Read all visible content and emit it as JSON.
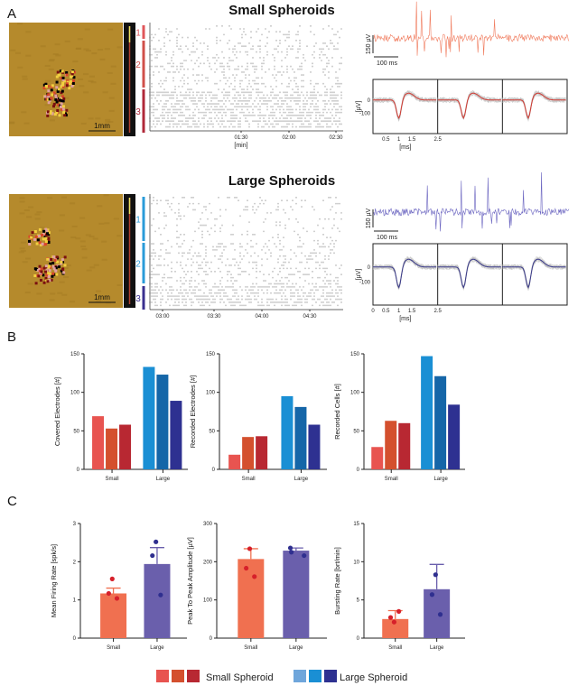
{
  "panel_labels": {
    "a": "A",
    "b": "B",
    "c": "C"
  },
  "panel_a": {
    "small": {
      "title": "Small Spheroids",
      "scale_label": "1mm",
      "cluster_labels": [
        "1",
        "2",
        "3"
      ],
      "cluster_colors": [
        "#e0565a",
        "#d0504a",
        "#b02838"
      ],
      "raster_ticks": [
        "01:30",
        "02:00",
        "02:30"
      ],
      "raster_xlabel": "[min]",
      "trace_color": "#f07a5c",
      "trace_scale_v": "150 µV",
      "trace_scale_t": "100 ms",
      "waveform_ylabel": "[µV]",
      "waveform_yticks": [
        "0",
        "-100"
      ],
      "waveform_xticks": [
        "0.5",
        "1",
        "1.5",
        "2.5"
      ],
      "waveform_xlabel": "[ms]",
      "waveform_color": "#d23a32"
    },
    "large": {
      "title": "Large Spheroids",
      "scale_label": "1mm",
      "cluster_labels": [
        "1",
        "2",
        "3"
      ],
      "cluster_colors": [
        "#2a9bd8",
        "#2a9bd8",
        "#3a2f8f"
      ],
      "raster_ticks": [
        "03:00",
        "03:30",
        "04:00",
        "04:30"
      ],
      "raster_xlabel": "",
      "trace_color": "#6a64c0",
      "trace_scale_v": "150 µV",
      "trace_scale_t": "100 ms",
      "waveform_ylabel": "[µV]",
      "waveform_yticks": [
        "0",
        "-100"
      ],
      "waveform_xticks": [
        "0",
        "0.5",
        "1",
        "1.5",
        "2.5"
      ],
      "waveform_xlabel": "[ms]",
      "waveform_color": "#3a3a8a"
    }
  },
  "chart_data": [
    {
      "type": "bar",
      "panel": "B",
      "ylabel": "Covered Electrodes [#]",
      "ylim": [
        0,
        150
      ],
      "yticks": [
        "0",
        "50",
        "100",
        "150"
      ],
      "categories": [
        "Small",
        "Large"
      ],
      "values": [
        [
          69,
          53,
          58
        ],
        [
          133,
          123,
          89
        ]
      ]
    },
    {
      "type": "bar",
      "panel": "B",
      "ylabel": "Recorded Electrodes [#]",
      "ylim": [
        0,
        150
      ],
      "yticks": [
        "0",
        "50",
        "100",
        "150"
      ],
      "categories": [
        "Small",
        "Large"
      ],
      "values": [
        [
          19,
          42,
          43
        ],
        [
          95,
          81,
          58
        ]
      ]
    },
    {
      "type": "bar",
      "panel": "B",
      "ylabel": "Recorded Cells [#]",
      "ylim": [
        0,
        150
      ],
      "yticks": [
        "0",
        "50",
        "100",
        "150"
      ],
      "categories": [
        "Small",
        "Large"
      ],
      "values": [
        [
          29,
          63,
          60
        ],
        [
          147,
          121,
          84
        ]
      ]
    },
    {
      "type": "bar",
      "panel": "C",
      "ylabel": "Mean Firing Rate [spk/s]",
      "ylim": [
        0,
        3
      ],
      "yticks": [
        "0",
        "1",
        "2",
        "3"
      ],
      "categories": [
        "Small",
        "Large"
      ],
      "means": [
        1.17,
        1.94
      ],
      "error_upper": [
        1.31,
        2.37
      ],
      "points": [
        [
          1.55,
          1.17,
          1.04
        ],
        [
          2.52,
          2.16,
          1.13
        ]
      ]
    },
    {
      "type": "bar",
      "panel": "C",
      "ylabel": "Peak To Peak Amplitude [µV]",
      "ylim": [
        0,
        300
      ],
      "yticks": [
        "0",
        "100",
        "200",
        "300"
      ],
      "categories": [
        "Small",
        "Large"
      ],
      "means": [
        207,
        229
      ],
      "error_upper": [
        234,
        236
      ],
      "points": [
        [
          234,
          183,
          161
        ],
        [
          236,
          225,
          216
        ]
      ]
    },
    {
      "type": "bar",
      "panel": "C",
      "ylabel": "Bursting Rate [brt/min]",
      "ylim": [
        0,
        15
      ],
      "yticks": [
        "0",
        "5",
        "10",
        "15"
      ],
      "categories": [
        "Small",
        "Large"
      ],
      "means": [
        2.5,
        6.4
      ],
      "error_upper": [
        3.6,
        9.65
      ],
      "points": [
        [
          2.1,
          2.7,
          3.5
        ],
        [
          8.3,
          5.7,
          3.1
        ]
      ]
    }
  ],
  "colors": {
    "small_bars": [
      "#e85450",
      "#d4502e",
      "#b82832"
    ],
    "large_bars": [
      "#1a8fd4",
      "#1566a8",
      "#2e3191"
    ],
    "small_mean_bar": "#f07050",
    "large_mean_bar": "#6a5fac",
    "small_points": "#d6202a",
    "large_points": "#2f2f8f"
  },
  "legend": {
    "small": {
      "label": "Small Spheroid",
      "swatches": [
        "#e85450",
        "#d4502e",
        "#b82832"
      ]
    },
    "large": {
      "label": "Large Spheroid",
      "swatches": [
        "#6fa6db",
        "#1a8fd4",
        "#2e3191"
      ]
    }
  }
}
